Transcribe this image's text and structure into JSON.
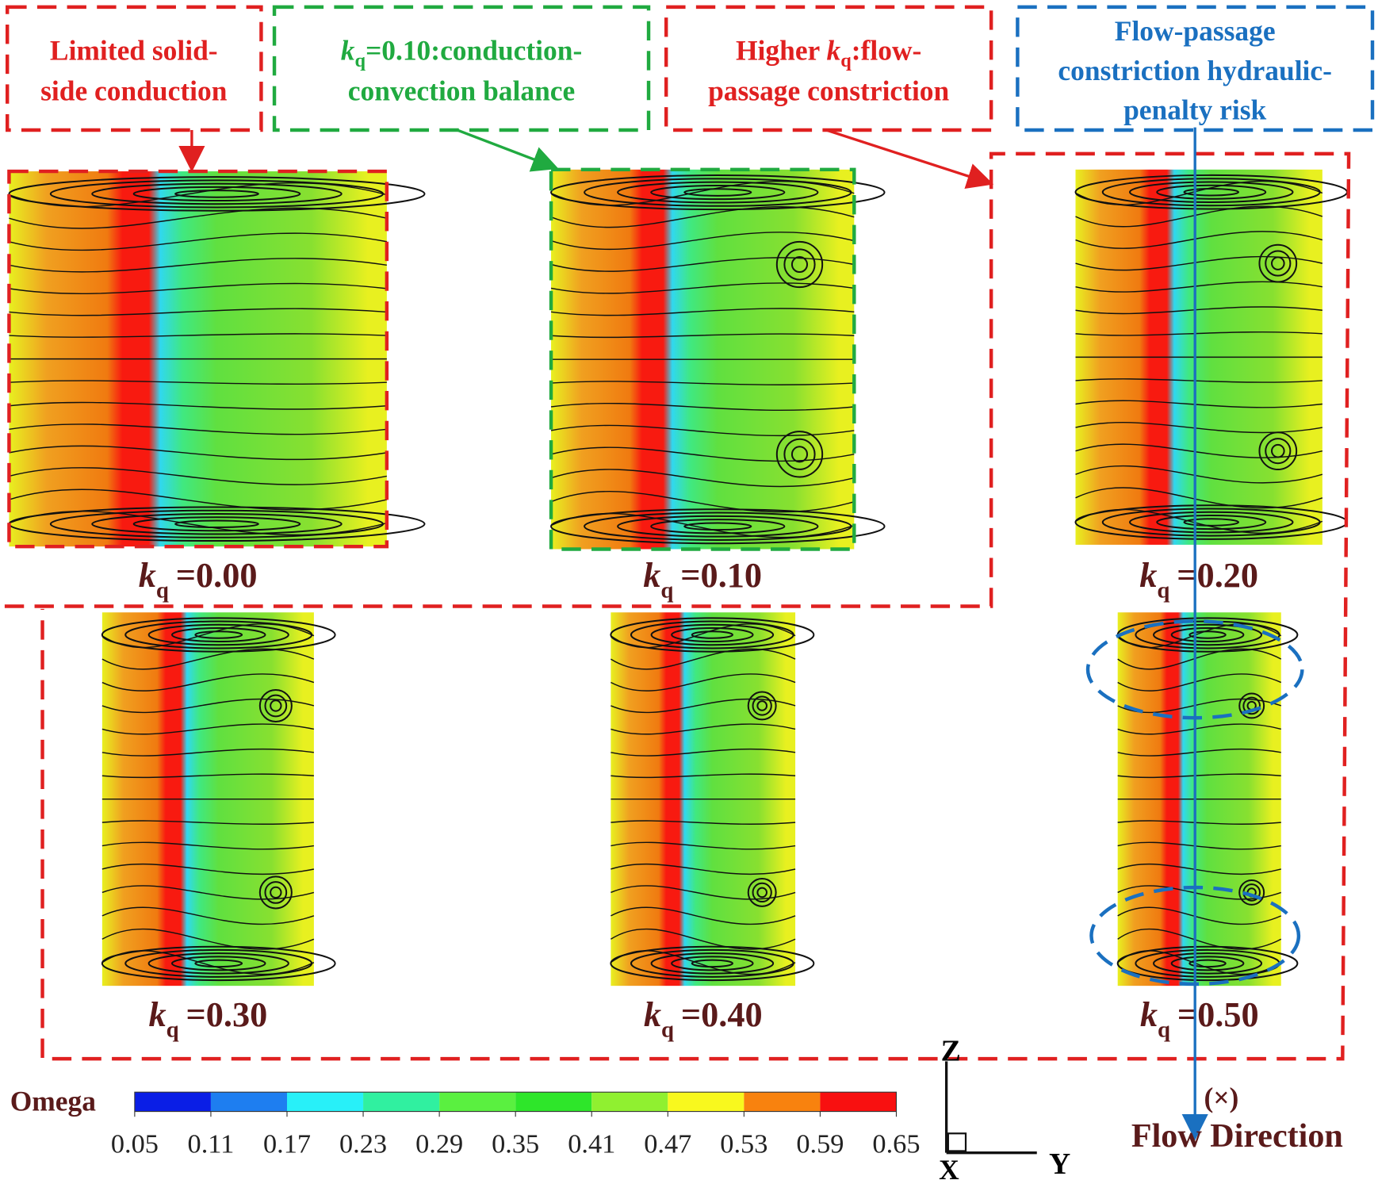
{
  "callouts": [
    {
      "line1": "Limited solid-",
      "line2": "side conduction"
    },
    {
      "symbol": "k",
      "subscript": "q",
      "line1": "=0.10:conduction-",
      "line2": "convection balance"
    },
    {
      "line1_start": "Higher ",
      "symbol": "k",
      "subscript": "q",
      "line1_end": ":flow-",
      "line2": "passage constriction"
    },
    {
      "line1": "Flow-passage",
      "line2": "constriction hydraulic-",
      "line3": "penalty risk"
    }
  ],
  "panels": [
    {
      "symbol": "k",
      "subscript": "q",
      "value": "=0.00"
    },
    {
      "symbol": "k",
      "subscript": "q",
      "value": "=0.10"
    },
    {
      "symbol": "k",
      "subscript": "q",
      "value": "=0.20"
    },
    {
      "symbol": "k",
      "subscript": "q",
      "value": "=0.30"
    },
    {
      "symbol": "k",
      "subscript": "q",
      "value": "=0.40"
    },
    {
      "symbol": "k",
      "subscript": "q",
      "value": "=0.50"
    }
  ],
  "colorbar": {
    "title": "Omega",
    "ticks": [
      0.05,
      0.11,
      0.17,
      0.23,
      0.29,
      0.35,
      0.41,
      0.47,
      0.53,
      0.59,
      0.65
    ],
    "colors": [
      "#0a1ee6",
      "#1e7ef0",
      "#28f0f8",
      "#30f0a0",
      "#5af040",
      "#2ee62a",
      "#90f030",
      "#f8f81e",
      "#f8820e",
      "#f81010"
    ]
  },
  "axes": {
    "z": "Z",
    "y": "Y",
    "x": "X",
    "direction_symbol": "(×)",
    "direction_label": "Flow Direction"
  }
}
